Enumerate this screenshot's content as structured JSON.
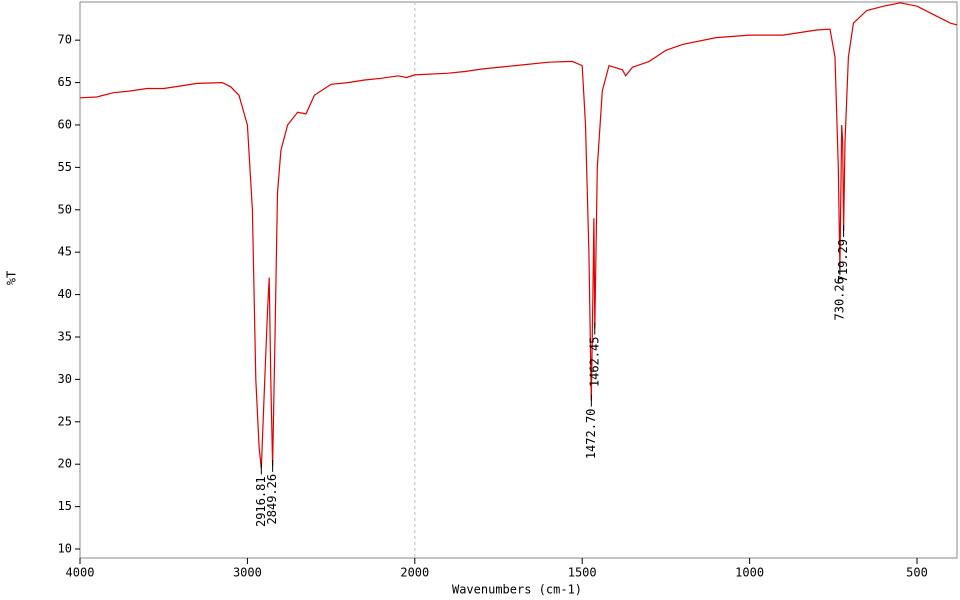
{
  "chart_data": {
    "type": "line",
    "x_label": "Wavenumbers (cm-1)",
    "y_label": "%T",
    "x": [
      4000,
      3900,
      3800,
      3700,
      3600,
      3500,
      3400,
      3300,
      3150,
      3100,
      3050,
      3000,
      2970,
      2950,
      2930,
      2916.81,
      2900,
      2880,
      2870,
      2860,
      2849.26,
      2835,
      2820,
      2800,
      2760,
      2700,
      2650,
      2600,
      2500,
      2400,
      2300,
      2200,
      2100,
      2050,
      2000,
      1900,
      1850,
      1800,
      1700,
      1600,
      1530,
      1500,
      1490,
      1480,
      1472.7,
      1468,
      1465,
      1462.45,
      1455,
      1440,
      1420,
      1380,
      1370,
      1350,
      1300,
      1250,
      1200,
      1100,
      1000,
      900,
      800,
      760,
      745,
      735,
      730.26,
      725,
      722,
      719.29,
      715,
      705,
      690,
      650,
      600,
      550,
      500,
      450,
      400,
      380
    ],
    "values": [
      63.2,
      63.3,
      63.8,
      64.0,
      64.3,
      64.3,
      64.6,
      64.9,
      65.0,
      64.5,
      63.5,
      60,
      50,
      30,
      22,
      19.5,
      28,
      38,
      42,
      30,
      19.8,
      35,
      52,
      57,
      60,
      61.5,
      61.3,
      63.5,
      64.8,
      65,
      65.3,
      65.5,
      65.8,
      65.6,
      65.9,
      66.1,
      66.3,
      66.6,
      67.0,
      67.4,
      67.5,
      67,
      60,
      45,
      27.5,
      40,
      49,
      36,
      55,
      64,
      67,
      66.5,
      65.8,
      66.8,
      67.5,
      68.8,
      69.5,
      70.3,
      70.6,
      70.6,
      71.2,
      71.3,
      68,
      55,
      43,
      60,
      58,
      47.5,
      58,
      68,
      72,
      73.5,
      74,
      74.4,
      74,
      73,
      72,
      71.8
    ],
    "color": "#e00000",
    "xlim": [
      4000,
      380
    ],
    "xticks": [
      4000,
      3000,
      2000,
      1500,
      1000,
      500
    ],
    "x_scale_break": 2000,
    "ylim": [
      8.94,
      74.5
    ],
    "yticks": [
      10,
      15,
      20,
      25,
      30,
      35,
      40,
      45,
      50,
      55,
      60,
      65,
      70
    ],
    "annotations": [
      {
        "x": 2916.81,
        "y": 19.5,
        "label": "2916.81"
      },
      {
        "x": 2849.26,
        "y": 19.8,
        "label": "2849.26"
      },
      {
        "x": 1472.7,
        "y": 27.5,
        "label": "1472.70"
      },
      {
        "x": 1462.45,
        "y": 36,
        "label": "1462.45"
      },
      {
        "x": 730.26,
        "y": 43,
        "label": "730.26"
      },
      {
        "x": 719.29,
        "y": 47.5,
        "label": "719.29"
      }
    ]
  }
}
